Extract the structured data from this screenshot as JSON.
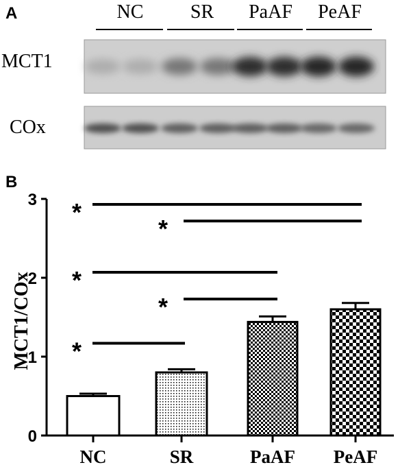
{
  "panel_a": {
    "label": "A",
    "lanes": [
      "NC",
      "SR",
      "PaAF",
      "PeAF"
    ],
    "bands": [
      "MCT1",
      "COx"
    ],
    "mct1_intensity": [
      0.15,
      0.45,
      0.85,
      0.9
    ],
    "cox_intensity": [
      0.8,
      0.7,
      0.7,
      0.65
    ]
  },
  "panel_b": {
    "label": "B"
  },
  "chart_data": {
    "type": "bar",
    "categories": [
      "NC",
      "SR",
      "PaAF",
      "PeAF"
    ],
    "values": [
      0.5,
      0.8,
      1.44,
      1.6
    ],
    "errors": [
      0.03,
      0.04,
      0.07,
      0.08
    ],
    "patterns": [
      "solid-white",
      "fine-dots",
      "checker-small",
      "checker-large"
    ],
    "ylabel": "MCT1/COx",
    "xlabel": "",
    "ylim": [
      0,
      3
    ],
    "yticks": [
      0,
      1,
      2,
      3
    ],
    "significance": [
      {
        "from": "NC",
        "to": "PeAF",
        "y": 2.93,
        "label": "*"
      },
      {
        "from": "SR",
        "to": "PeAF",
        "y": 2.72,
        "label": "*"
      },
      {
        "from": "NC",
        "to": "PaAF",
        "y": 2.07,
        "label": "*"
      },
      {
        "from": "SR",
        "to": "PaAF",
        "y": 1.73,
        "label": "*"
      },
      {
        "from": "NC",
        "to": "SR",
        "y": 1.17,
        "label": "*"
      }
    ]
  }
}
